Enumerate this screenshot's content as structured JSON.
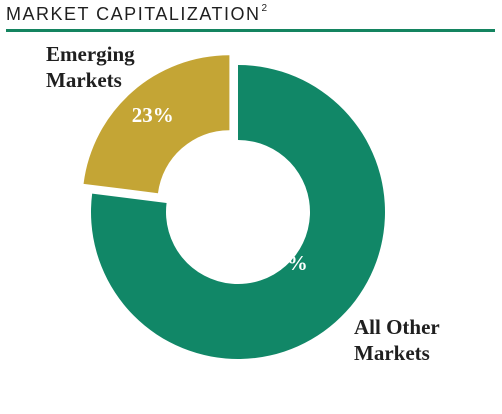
{
  "header": {
    "title": "MARKET CAPITALIZATION",
    "footnote": "2"
  },
  "colors": {
    "rule": "#148460",
    "emerging": "#C4A535",
    "other": "#118767",
    "slice_label": "#ffffff",
    "category_label": "#1f1f1f"
  },
  "chart_data": {
    "type": "pie",
    "title": "MARKET CAPITALIZATION",
    "donut": true,
    "categories": [
      "Emerging Markets",
      "All Other Markets"
    ],
    "values": [
      23,
      77
    ],
    "value_labels": [
      "23%",
      "77%"
    ],
    "category_labels": [
      [
        "Emerging",
        "Markets"
      ],
      [
        "All Other",
        "Markets"
      ]
    ],
    "colors": [
      "#C4A535",
      "#118767"
    ],
    "exploded": "Emerging Markets",
    "legend": "none"
  }
}
